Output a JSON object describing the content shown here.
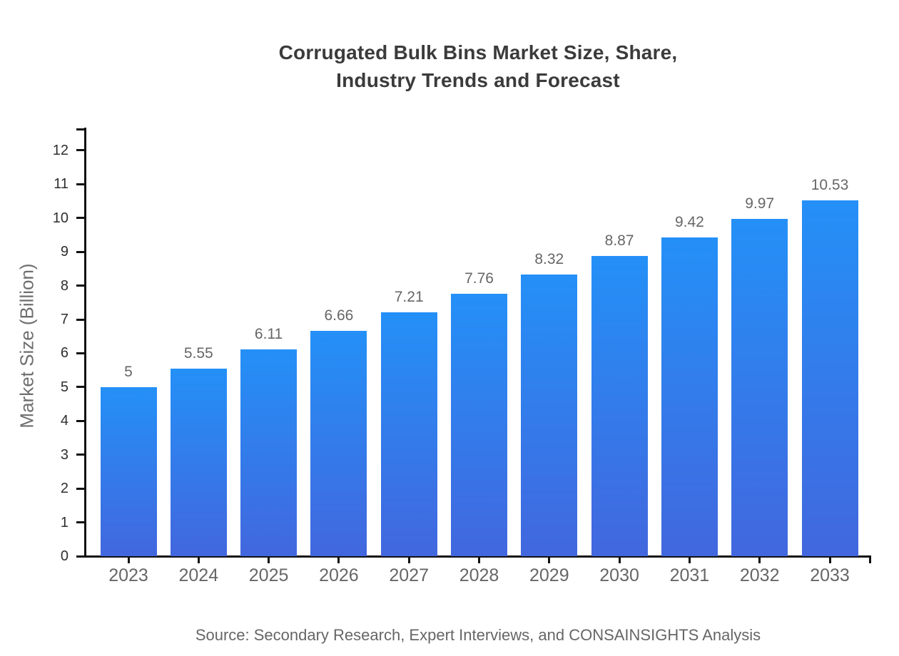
{
  "chart_data": {
    "type": "bar",
    "title": "Corrugated Bulk Bins Market Size, Share, Industry Trends and Forecast",
    "title_lines": [
      "Corrugated Bulk Bins Market Size, Share,",
      "Industry Trends and Forecast"
    ],
    "categories": [
      "2023",
      "2024",
      "2025",
      "2026",
      "2027",
      "2028",
      "2029",
      "2030",
      "2031",
      "2032",
      "2033"
    ],
    "values": [
      5,
      5.55,
      6.11,
      6.66,
      7.21,
      7.76,
      8.32,
      8.87,
      9.42,
      9.97,
      10.53
    ],
    "value_labels": [
      "5",
      "5.55",
      "6.11",
      "6.66",
      "7.21",
      "7.76",
      "8.32",
      "8.87",
      "9.42",
      "9.97",
      "10.53"
    ],
    "xlabel": "",
    "ylabel": "Market Size (Billion)",
    "yticks": [
      0,
      1,
      2,
      3,
      4,
      5,
      6,
      7,
      8,
      9,
      10,
      11,
      12
    ],
    "ylim": [
      0,
      12.63
    ],
    "grid": false,
    "legend": false,
    "source": "Source: Secondary Research, Expert Interviews, and CONSAINSIGHTS Analysis",
    "colors": {
      "background": "#ffffff",
      "bar_gradient_top": "#2490f7",
      "bar_gradient_bottom": "#4267de",
      "axis": "#111111",
      "y_tick_label": "#2e2e2e",
      "category_label": "#666666",
      "value_label": "#666666",
      "title": "#3b3b3b",
      "axis_title": "#6e6e6e",
      "source": "#666666"
    }
  }
}
